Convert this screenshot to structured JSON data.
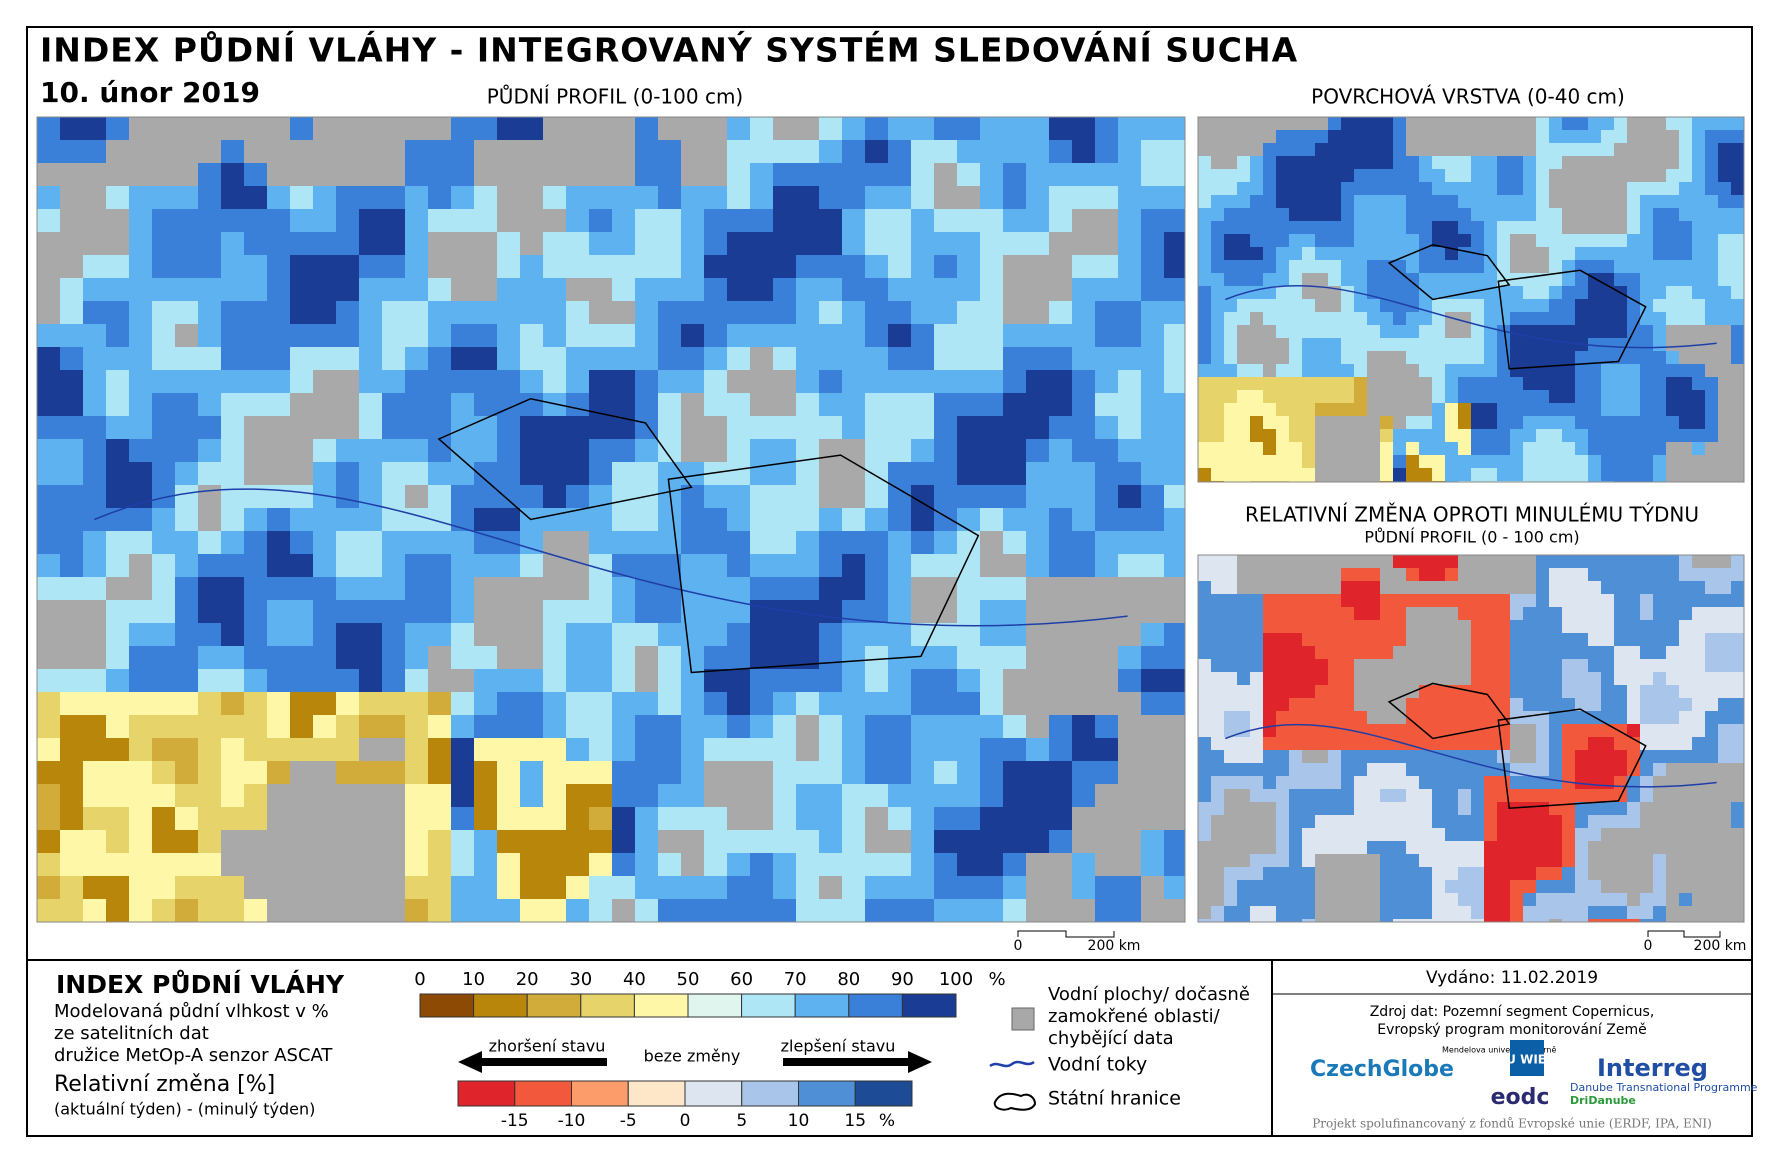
{
  "header": {
    "title": "INDEX PŮDNÍ VLÁHY - INTEGROVANÝ SYSTÉM SLEDOVÁNÍ SUCHA",
    "date": "10. únor 2019"
  },
  "maps": {
    "main": {
      "title": "PŮDNÍ PROFIL (0-100 cm)",
      "scale": [
        "0",
        "200 km"
      ]
    },
    "surface": {
      "title": "POVRCHOVÁ VRSTVA (0-40 cm)"
    },
    "change": {
      "title": "RELATIVNÍ ZMĚNA OPROTI MINULÉMU TÝDNU",
      "subtitle": "PŮDNÍ PROFIL (0 - 100 cm)",
      "scale": [
        "0",
        "200 km"
      ]
    }
  },
  "legend": {
    "title": "INDEX PŮDNÍ VLÁHY",
    "description": [
      "Modelovaná půdní vlhkost v %",
      "ze satelitních dat",
      "družice MetOp-A senzor ASCAT"
    ],
    "index_scale": {
      "labels": [
        "0",
        "10",
        "20",
        "30",
        "40",
        "50",
        "60",
        "70",
        "80",
        "90",
        "100"
      ],
      "unit": "%",
      "colors": [
        "#8c4a05",
        "#b8860b",
        "#d2ac3a",
        "#e6d46a",
        "#fff7a8",
        "#dff5ee",
        "#aee6f5",
        "#5fb2f0",
        "#3a7fd8",
        "#1a3c95"
      ]
    },
    "change_title": "Relativní změna [%]",
    "change_formula": "(aktuální týden) - (minulý týden)",
    "worse": "zhoršení stavu",
    "none": "beze změny",
    "better": "zlepšení stavu",
    "change_scale": {
      "labels": [
        "-15",
        "-10",
        "-5",
        "0",
        "5",
        "10",
        "15"
      ],
      "unit": "%",
      "colors": [
        "#e0242c",
        "#f2583b",
        "#fb9c6a",
        "#fde7c8",
        "#dde6f0",
        "#a9c6ea",
        "#4f8fd6",
        "#1e4b96"
      ]
    },
    "symbols": {
      "water": [
        "Vodní plochy/ dočasně",
        "zamokřené oblasti/",
        "chybějící data"
      ],
      "rivers": "Vodní toky",
      "borders": "Státní hranice"
    }
  },
  "info": {
    "issued": "Vydáno: 11.02.2019",
    "source": [
      "Zdroj dat: Pozemní segment Copernicus,",
      "Evropský program monitorování Země"
    ],
    "logos": [
      "CzechGlobe",
      "Mendelova univerzita v Brně",
      "TU WIEN",
      "eodc",
      "Interreg",
      "Danube Transnational Programme",
      "DriDanube"
    ],
    "footer": "Projekt spolufinancovaný z fondů Evropské unie (ERDF, IPA, ENI)"
  }
}
